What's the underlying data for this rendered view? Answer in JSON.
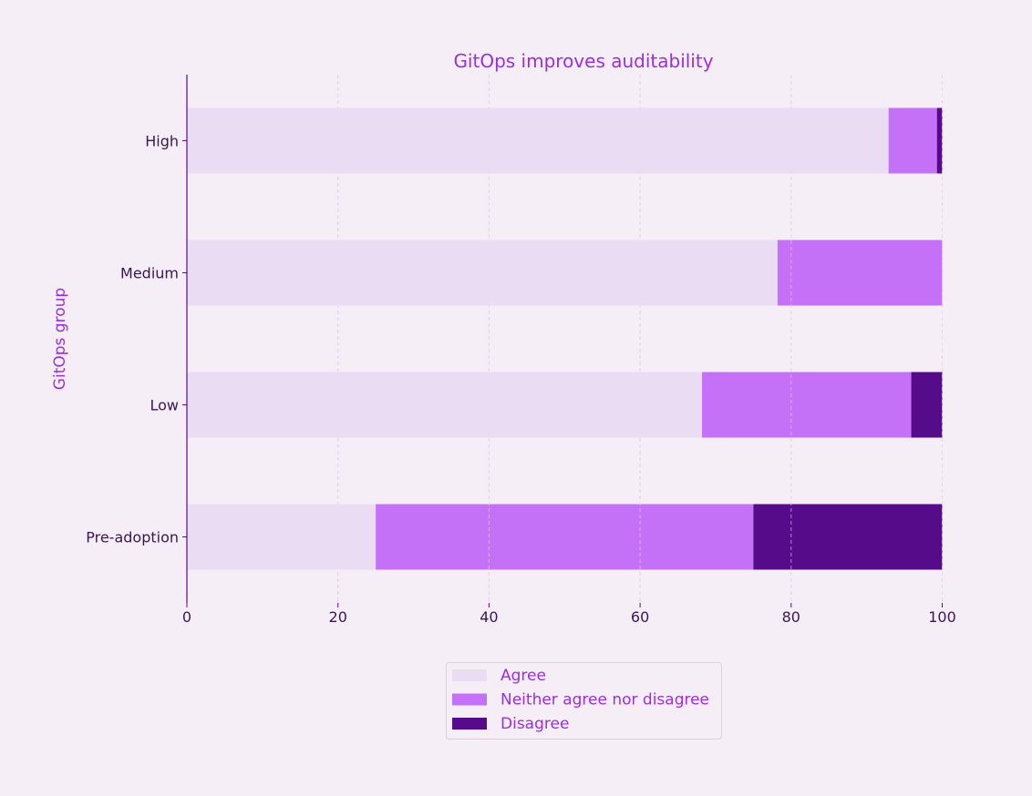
{
  "chart_data": {
    "type": "bar",
    "orientation": "horizontal",
    "stacked": true,
    "title": "GitOps improves auditability",
    "xlabel": "",
    "ylabel": "GitOps group",
    "xlim": [
      0,
      100
    ],
    "xticks": [
      "0",
      "20",
      "40",
      "60",
      "80",
      "100"
    ],
    "xtick_values": [
      0,
      20,
      40,
      60,
      80,
      100
    ],
    "categories": [
      "High",
      "Medium",
      "Low",
      "Pre-adoption"
    ],
    "series": [
      {
        "name": "Agree",
        "color": "#eadcf2",
        "values": [
          92.9,
          78.2,
          68.2,
          25.0
        ]
      },
      {
        "name": "Neither agree nor disagree",
        "color": "#c571f7",
        "values": [
          6.4,
          21.8,
          27.7,
          50.0
        ]
      },
      {
        "name": "Disagree",
        "color": "#560c8a",
        "values": [
          0.7,
          0.0,
          4.1,
          25.0
        ]
      }
    ],
    "grid": "x, dashed",
    "legend_placement": "bottom-center"
  }
}
